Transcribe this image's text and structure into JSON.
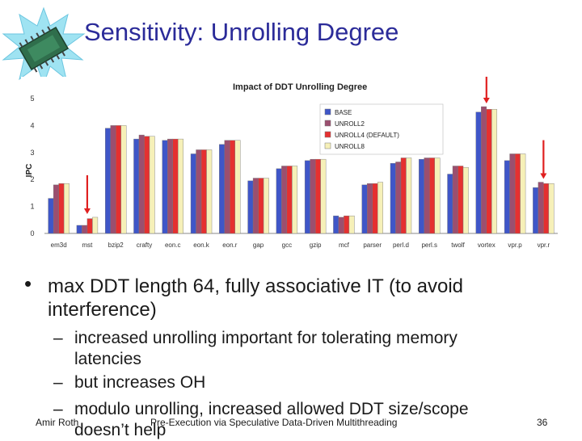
{
  "slide": {
    "title": "Sensitivity: Unrolling Degree",
    "bullet": "max DDT length 64, fully associative IT (to avoid interference)",
    "subbullets": [
      "increased unrolling important for tolerating memory",
      "latencies",
      "but increases OH",
      "modulo unrolling, increased allowed DDT size/scope",
      "doesn’t help"
    ],
    "footer_left": "Amir Roth",
    "footer_center": "Pre-Execution via Speculative Data-Driven Multithreading",
    "page_number": "36"
  },
  "bullet_glyph": "•",
  "dash_glyph": "–",
  "chart_data": {
    "type": "bar",
    "title": "Impact of DDT Unrolling Degree",
    "ylabel": "IPC",
    "ylim": [
      0,
      5
    ],
    "yticks": [
      "0",
      "1",
      "2",
      "3",
      "4",
      "5"
    ],
    "grid": false,
    "legend_position": "top-right",
    "categories": [
      "em3d",
      "mst",
      "bzip2",
      "crafty",
      "eon.c",
      "eon.k",
      "eon.r",
      "gap",
      "gcc",
      "gzip",
      "mcf",
      "parser",
      "perl.d",
      "perl.s",
      "twolf",
      "vortex",
      "vpr.p",
      "vpr.r"
    ],
    "series": [
      {
        "name": "BASE",
        "color": "#3f56c8",
        "values": [
          1.3,
          0.3,
          3.9,
          3.5,
          3.45,
          2.95,
          3.3,
          1.95,
          2.4,
          2.7,
          0.65,
          1.8,
          2.6,
          2.75,
          2.2,
          4.5,
          2.7,
          1.7
        ]
      },
      {
        "name": "UNROLL2",
        "color": "#9b4f6f",
        "values": [
          1.8,
          0.3,
          4.0,
          3.65,
          3.5,
          3.1,
          3.45,
          2.05,
          2.5,
          2.75,
          0.6,
          1.85,
          2.65,
          2.8,
          2.5,
          4.7,
          2.95,
          1.9
        ]
      },
      {
        "name": "UNROLL4 (DEFAULT)",
        "color": "#e53030",
        "values": [
          1.85,
          0.55,
          4.0,
          3.6,
          3.5,
          3.1,
          3.45,
          2.05,
          2.5,
          2.75,
          0.65,
          1.85,
          2.8,
          2.8,
          2.5,
          4.6,
          2.95,
          1.85
        ]
      },
      {
        "name": "UNROLL8",
        "color": "#f6f0b8",
        "values": [
          1.85,
          0.6,
          4.0,
          3.6,
          3.5,
          3.1,
          3.45,
          2.05,
          2.5,
          2.75,
          0.65,
          1.9,
          2.8,
          2.8,
          2.45,
          4.6,
          2.95,
          1.85
        ]
      }
    ],
    "annotations": [
      {
        "type": "arrow",
        "category": "mst",
        "color": "#e02020"
      },
      {
        "type": "arrow",
        "category": "vortex",
        "color": "#e02020"
      },
      {
        "type": "arrow",
        "category": "vpr.r",
        "color": "#e02020"
      }
    ]
  }
}
